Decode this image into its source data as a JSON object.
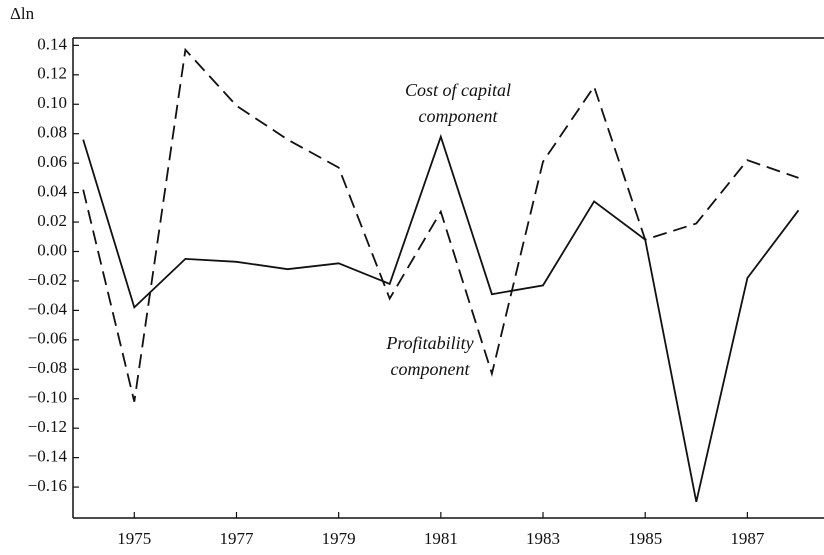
{
  "chart_data": {
    "type": "line",
    "y_label": "Δln",
    "annotations": [
      "Cost of capital",
      "component",
      "Profitability",
      "component"
    ],
    "x": [
      1974,
      1975,
      1976,
      1977,
      1978,
      1979,
      1980,
      1981,
      1982,
      1983,
      1984,
      1985,
      1986,
      1987,
      1988
    ],
    "series": [
      {
        "name": "Profitability component",
        "color": "#111111",
        "style": "solid",
        "values": [
          0.076,
          -0.038,
          -0.005,
          -0.007,
          -0.012,
          -0.008,
          -0.022,
          0.078,
          -0.029,
          -0.023,
          0.034,
          0.008,
          -0.17,
          -0.018,
          0.028
        ]
      },
      {
        "name": "Cost of capital component",
        "color": "#111111",
        "style": "dashed",
        "values": [
          0.042,
          -0.102,
          0.137,
          0.099,
          0.076,
          0.057,
          -0.032,
          0.027,
          -0.083,
          0.061,
          0.112,
          0.008,
          0.019,
          0.062,
          0.05
        ]
      }
    ],
    "xlim": [
      1973.8,
      1988.5
    ],
    "xticks": [
      1975,
      1977,
      1979,
      1981,
      1983,
      1985,
      1987
    ],
    "ylim": [
      -0.181,
      0.145
    ],
    "yticks": [
      {
        "value": 0.14,
        "label": "0.14"
      },
      {
        "value": 0.12,
        "label": "0.12"
      },
      {
        "value": 0.1,
        "label": "0.10"
      },
      {
        "value": 0.08,
        "label": "0.08"
      },
      {
        "value": 0.06,
        "label": "0.06"
      },
      {
        "value": 0.04,
        "label": "0.04"
      },
      {
        "value": 0.02,
        "label": "0.02"
      },
      {
        "value": 0.0,
        "label": "0.00"
      },
      {
        "value": -0.02,
        "label": "−0.02"
      },
      {
        "value": -0.04,
        "label": "−0.04"
      },
      {
        "value": -0.06,
        "label": "−0.06"
      },
      {
        "value": -0.08,
        "label": "−0.08"
      },
      {
        "value": -0.1,
        "label": "−0.10"
      },
      {
        "value": -0.12,
        "label": "−0.12"
      },
      {
        "value": -0.14,
        "label": "−0.14"
      },
      {
        "value": -0.16,
        "label": "−0.16"
      }
    ],
    "grid": false
  }
}
